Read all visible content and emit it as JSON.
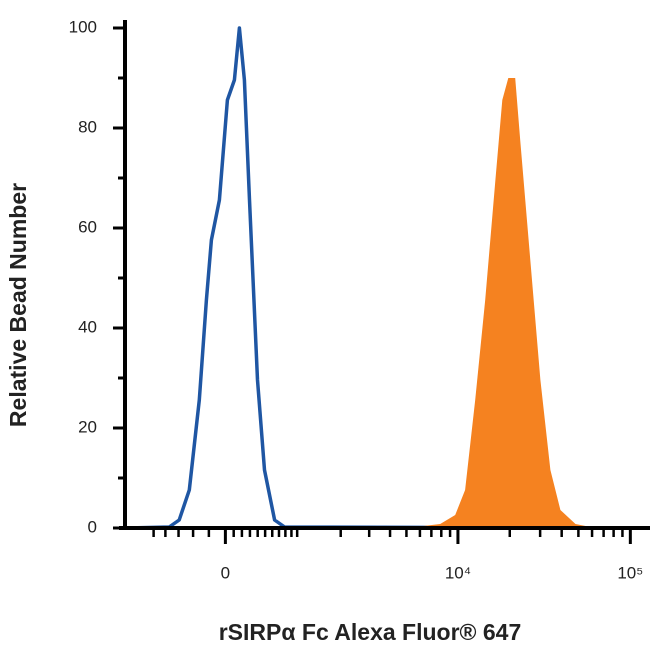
{
  "chart_data": {
    "type": "line",
    "xlabel": "rSIRPα Fc Alexa Fluor® 647",
    "ylabel": "Relative Bead Number",
    "xscale": "biexponential",
    "xlim": [
      -1600,
      130000
    ],
    "ylim": [
      0,
      100
    ],
    "xticks": [
      {
        "value": 0,
        "label": "0"
      },
      {
        "value": 10000,
        "label": "10⁴"
      },
      {
        "value": 100000,
        "label": "10⁵"
      }
    ],
    "xminorticks": [
      -1000,
      -800,
      -600,
      -400,
      -200,
      100,
      200,
      300,
      400,
      500,
      600,
      700,
      800,
      900,
      1000,
      2000,
      3000,
      4000,
      5000,
      6000,
      7000,
      8000,
      9000,
      20000,
      30000,
      40000,
      50000,
      60000,
      70000,
      80000,
      90000
    ],
    "yticks": [
      0,
      20,
      40,
      60,
      80,
      100
    ],
    "yminorticks": [
      10,
      30,
      50,
      70,
      90
    ],
    "series": [
      {
        "color": "#1f56a3",
        "fill": false,
        "x": [
          -1600,
          -740,
          -590,
          -451,
          -320,
          -231,
          -169,
          -72,
          24,
          108,
          169,
          231,
          294,
          397,
          491,
          634,
          787,
          130000
        ],
        "values": [
          0,
          0.2,
          1.6,
          7.6,
          25.6,
          45.6,
          57.6,
          65.6,
          85.6,
          89.6,
          100,
          89.6,
          65.6,
          29.6,
          11.6,
          1.6,
          0.2,
          0
        ]
      },
      {
        "color": "#f58220",
        "fill": true,
        "x": [
          5620,
          7880,
          9640,
          11000,
          12600,
          14400,
          16500,
          18100,
          19600,
          21500,
          23000,
          26300,
          30100,
          34400,
          39300,
          48100,
          58800
        ],
        "values": [
          0.2,
          0.8,
          2.6,
          7.6,
          25.6,
          45.6,
          69.6,
          85.6,
          90,
          90,
          77.6,
          53.6,
          29.6,
          11.6,
          3.6,
          0.8,
          0.2
        ]
      }
    ]
  }
}
